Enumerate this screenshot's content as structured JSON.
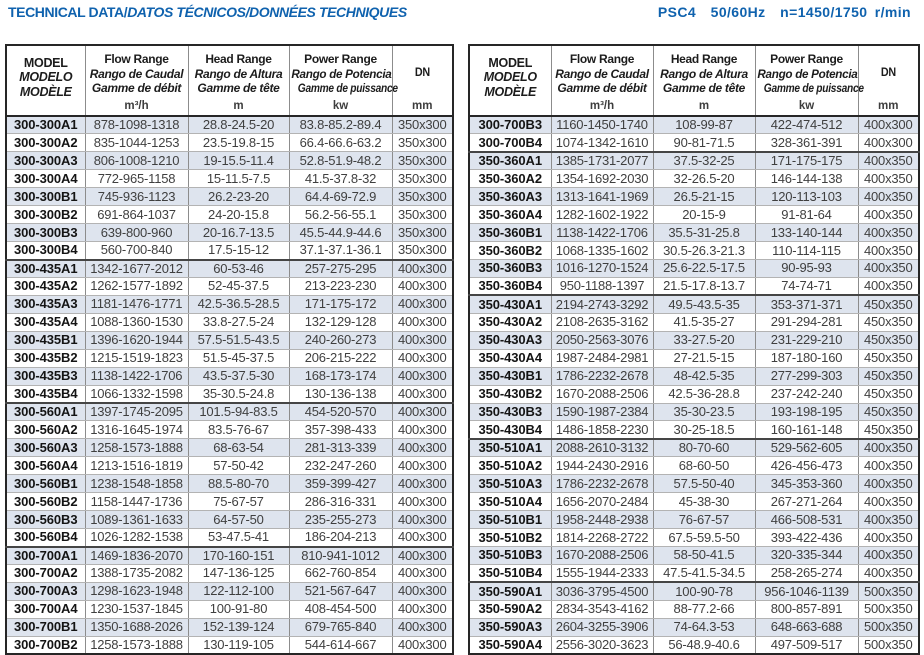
{
  "title": {
    "part1": "TECHNICAL DATA/",
    "part2": "DATOS TÉCNICOS/DONNÉES TECHNIQUES"
  },
  "spec": "PSC4  50/60Hz  n=1450/1750 r/min",
  "header": {
    "model": [
      "MODEL",
      "MODELO",
      "MODÈLE"
    ],
    "columns": [
      {
        "name": "flow",
        "lines": [
          "Flow Range",
          "Rango de Caudal",
          "Gamme de débit"
        ],
        "unit": "m³/h"
      },
      {
        "name": "head",
        "lines": [
          "Head Range",
          "Rango de Altura",
          "Gamme de tête"
        ],
        "unit": "m"
      },
      {
        "name": "power",
        "lines": [
          "Power Range",
          "Rango de Potencia",
          "Gamme de puissance"
        ],
        "unit": "kw"
      }
    ],
    "dn": {
      "label": "DN",
      "unit": "mm"
    }
  },
  "tables": [
    {
      "rows": [
        [
          "300-300A1",
          "878-1098-1318",
          "28.8-24.5-20",
          "83.8-85.2-89.4",
          "350x300"
        ],
        [
          "300-300A2",
          "835-1044-1253",
          "23.5-19.8-15",
          "66.4-66.6-63.2",
          "350x300"
        ],
        [
          "300-300A3",
          "806-1008-1210",
          "19-15.5-11.4",
          "52.8-51.9-48.2",
          "350x300"
        ],
        [
          "300-300A4",
          "772-965-1158",
          "15-11.5-7.5",
          "41.5-37.8-32",
          "350x300"
        ],
        [
          "300-300B1",
          "745-936-1123",
          "26.2-23-20",
          "64.4-69-72.9",
          "350x300"
        ],
        [
          "300-300B2",
          "691-864-1037",
          "24-20-15.8",
          "56.2-56-55.1",
          "350x300"
        ],
        [
          "300-300B3",
          "639-800-960",
          "20-16.7-13.5",
          "45.5-44.9-44.6",
          "350x300"
        ],
        [
          "300-300B4",
          "560-700-840",
          "17.5-15-12",
          "37.1-37.1-36.1",
          "350x300"
        ],
        [
          "300-435A1",
          "1342-1677-2012",
          "60-53-46",
          "257-275-295",
          "400x300"
        ],
        [
          "300-435A2",
          "1262-1577-1892",
          "52-45-37.5",
          "213-223-230",
          "400x300"
        ],
        [
          "300-435A3",
          "1181-1476-1771",
          "42.5-36.5-28.5",
          "171-175-172",
          "400x300"
        ],
        [
          "300-435A4",
          "1088-1360-1530",
          "33.8-27.5-24",
          "132-129-128",
          "400x300"
        ],
        [
          "300-435B1",
          "1396-1620-1944",
          "57.5-51.5-43.5",
          "240-260-273",
          "400x300"
        ],
        [
          "300-435B2",
          "1215-1519-1823",
          "51.5-45-37.5",
          "206-215-222",
          "400x300"
        ],
        [
          "300-435B3",
          "1138-1422-1706",
          "43.5-37.5-30",
          "168-173-174",
          "400x300"
        ],
        [
          "300-435B4",
          "1066-1332-1598",
          "35-30.5-24.8",
          "130-136-138",
          "400x300"
        ],
        [
          "300-560A1",
          "1397-1745-2095",
          "101.5-94-83.5",
          "454-520-570",
          "400x300"
        ],
        [
          "300-560A2",
          "1316-1645-1974",
          "83.5-76-67",
          "357-398-433",
          "400x300"
        ],
        [
          "300-560A3",
          "1258-1573-1888",
          "68-63-54",
          "281-313-339",
          "400x300"
        ],
        [
          "300-560A4",
          "1213-1516-1819",
          "57-50-42",
          "232-247-260",
          "400x300"
        ],
        [
          "300-560B1",
          "1238-1548-1858",
          "88.5-80-70",
          "359-399-427",
          "400x300"
        ],
        [
          "300-560B2",
          "1158-1447-1736",
          "75-67-57",
          "286-316-331",
          "400x300"
        ],
        [
          "300-560B3",
          "1089-1361-1633",
          "64-57-50",
          "235-255-273",
          "400x300"
        ],
        [
          "300-560B4",
          "1026-1282-1538",
          "53-47.5-41",
          "186-204-213",
          "400x300"
        ],
        [
          "300-700A1",
          "1469-1836-2070",
          "170-160-151",
          "810-941-1012",
          "400x300"
        ],
        [
          "300-700A2",
          "1388-1735-2082",
          "147-136-125",
          "662-760-854",
          "400x300"
        ],
        [
          "300-700A3",
          "1298-1623-1948",
          "122-112-100",
          "521-567-647",
          "400x300"
        ],
        [
          "300-700A4",
          "1230-1537-1845",
          "100-91-80",
          "408-454-500",
          "400x300"
        ],
        [
          "300-700B1",
          "1350-1688-2026",
          "152-139-124",
          "679-765-840",
          "400x300"
        ],
        [
          "300-700B2",
          "1258-1573-1888",
          "130-119-105",
          "544-614-667",
          "400x300"
        ]
      ]
    },
    {
      "rows": [
        [
          "300-700B3",
          "1160-1450-1740",
          "108-99-87",
          "422-474-512",
          "400x300"
        ],
        [
          "300-700B4",
          "1074-1342-1610",
          "90-81-71.5",
          "328-361-391",
          "400x300"
        ],
        [
          "350-360A1",
          "1385-1731-2077",
          "37.5-32-25",
          "171-175-175",
          "400x350"
        ],
        [
          "350-360A2",
          "1354-1692-2030",
          "32-26.5-20",
          "146-144-138",
          "400x350"
        ],
        [
          "350-360A3",
          "1313-1641-1969",
          "26.5-21-15",
          "120-113-103",
          "400x350"
        ],
        [
          "350-360A4",
          "1282-1602-1922",
          "20-15-9",
          "91-81-64",
          "400x350"
        ],
        [
          "350-360B1",
          "1138-1422-1706",
          "35.5-31-25.8",
          "133-140-144",
          "400x350"
        ],
        [
          "350-360B2",
          "1068-1335-1602",
          "30.5-26.3-21.3",
          "110-114-115",
          "400x350"
        ],
        [
          "350-360B3",
          "1016-1270-1524",
          "25.6-22.5-17.5",
          "90-95-93",
          "400x350"
        ],
        [
          "350-360B4",
          "950-1188-1397",
          "21.5-17.8-13.7",
          "74-74-71",
          "400x350"
        ],
        [
          "350-430A1",
          "2194-2743-3292",
          "49.5-43.5-35",
          "353-371-371",
          "450x350"
        ],
        [
          "350-430A2",
          "2108-2635-3162",
          "41.5-35-27",
          "291-294-281",
          "450x350"
        ],
        [
          "350-430A3",
          "2050-2563-3076",
          "33-27.5-20",
          "231-229-210",
          "450x350"
        ],
        [
          "350-430A4",
          "1987-2484-2981",
          "27-21.5-15",
          "187-180-160",
          "450x350"
        ],
        [
          "350-430B1",
          "1786-2232-2678",
          "48-42.5-35",
          "277-299-303",
          "450x350"
        ],
        [
          "350-430B2",
          "1670-2088-2506",
          "42.5-36-28.8",
          "237-242-240",
          "450x350"
        ],
        [
          "350-430B3",
          "1590-1987-2384",
          "35-30-23.5",
          "193-198-195",
          "450x350"
        ],
        [
          "350-430B4",
          "1486-1858-2230",
          "30-25-18.5",
          "160-161-148",
          "450x350"
        ],
        [
          "350-510A1",
          "2088-2610-3132",
          "80-70-60",
          "529-562-605",
          "400x350"
        ],
        [
          "350-510A2",
          "1944-2430-2916",
          "68-60-50",
          "426-456-473",
          "400x350"
        ],
        [
          "350-510A3",
          "1786-2232-2678",
          "57.5-50-40",
          "345-353-360",
          "400x350"
        ],
        [
          "350-510A4",
          "1656-2070-2484",
          "45-38-30",
          "267-271-264",
          "400x350"
        ],
        [
          "350-510B1",
          "1958-2448-2938",
          "76-67-57",
          "466-508-531",
          "400x350"
        ],
        [
          "350-510B2",
          "1814-2268-2722",
          "67.5-59.5-50",
          "393-422-436",
          "400x350"
        ],
        [
          "350-510B3",
          "1670-2088-2506",
          "58-50-41.5",
          "320-335-344",
          "400x350"
        ],
        [
          "350-510B4",
          "1555-1944-2333",
          "47.5-41.5-34.5",
          "258-265-274",
          "400x350"
        ],
        [
          "350-590A1",
          "3036-3795-4500",
          "100-90-78",
          "956-1046-1139",
          "500x350"
        ],
        [
          "350-590A2",
          "2834-3543-4162",
          "88-77.2-66",
          "800-857-891",
          "500x350"
        ],
        [
          "350-590A3",
          "2604-3255-3906",
          "74-64.3-53",
          "648-663-688",
          "500x350"
        ],
        [
          "350-590A4",
          "2556-3020-3623",
          "56-48.9-40.6",
          "497-509-517",
          "500x350"
        ]
      ]
    }
  ]
}
